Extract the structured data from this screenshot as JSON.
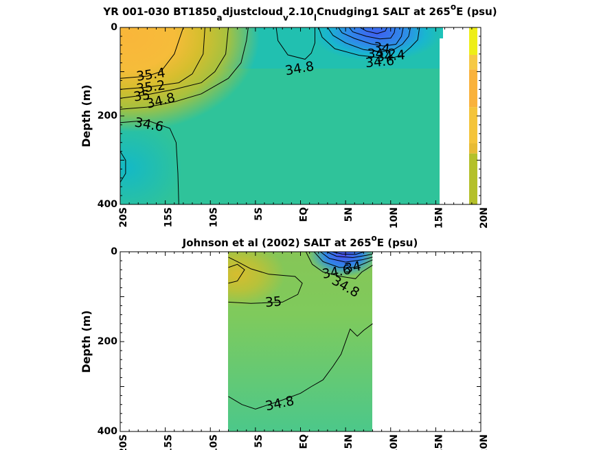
{
  "chart_data": [
    {
      "type": "heatmap",
      "title": {
        "pre": "YR 001-030 BT1850",
        "sub1": "a",
        "mid1": "djustcloud",
        "sub2": "v",
        "mid2": "2.10",
        "sub3": "l",
        "mid3": "Cnudging1 SALT at 265",
        "sup": "o",
        "post": "E (psu)"
      },
      "ylabel": "Depth (m)",
      "xlim": [
        -20,
        20
      ],
      "ylim": [
        0,
        400
      ],
      "y_reversed": true,
      "x_ticks": [
        {
          "v": -20,
          "label": "20S"
        },
        {
          "v": -15,
          "label": "15S"
        },
        {
          "v": -10,
          "label": "10S"
        },
        {
          "v": -5,
          "label": "5S"
        },
        {
          "v": 0,
          "label": "EQ"
        },
        {
          "v": 5,
          "label": "5N"
        },
        {
          "v": 10,
          "label": "10N"
        },
        {
          "v": 15,
          "label": "15N"
        },
        {
          "v": 20,
          "label": "20N"
        }
      ],
      "y_ticks": [
        0,
        200,
        400
      ],
      "data_extent_lat": [
        -20,
        15.5
      ],
      "colormap": "parula",
      "contours": [
        {
          "level": 35.4,
          "points": [
            [
              -20,
              115
            ],
            [
              -17,
              110
            ],
            [
              -15.5,
              100
            ],
            [
              -14,
              60
            ],
            [
              -13,
              0
            ]
          ]
        },
        {
          "level": 35.2,
          "points": [
            [
              -20,
              140
            ],
            [
              -17,
              135
            ],
            [
              -13.5,
              125
            ],
            [
              -12,
              105
            ],
            [
              -10.8,
              60
            ],
            [
              -10.6,
              0
            ]
          ]
        },
        {
          "level": 35,
          "points": [
            [
              -20,
              160
            ],
            [
              -17,
              152
            ],
            [
              -14,
              140
            ],
            [
              -11,
              125
            ],
            [
              -9.5,
              100
            ],
            [
              -8.3,
              60
            ],
            [
              -8,
              0
            ]
          ]
        },
        {
          "level": 34.8,
          "points": [
            [
              -20,
              185
            ],
            [
              -17,
              180
            ],
            [
              -14,
              168
            ],
            [
              -11,
              150
            ],
            [
              -8,
              115
            ],
            [
              -6.6,
              80
            ],
            [
              -6,
              30
            ],
            [
              -5.8,
              0
            ]
          ]
        },
        {
          "level": 34.6,
          "points": [
            [
              -20,
              215
            ],
            [
              -17,
              210
            ],
            [
              -14.5,
              228
            ],
            [
              -13.8,
              260
            ],
            [
              -13.6,
              330
            ],
            [
              -13.5,
              400
            ]
          ]
        },
        {
          "level": 34.6,
          "points": [
            [
              -20,
              280
            ],
            [
              -19.4,
              300
            ],
            [
              -19.4,
              330
            ],
            [
              -20,
              350
            ]
          ]
        },
        {
          "level": 34.8,
          "points": [
            [
              -2.7,
              0
            ],
            [
              -2.5,
              30
            ],
            [
              -1.4,
              62
            ],
            [
              0.5,
              72
            ],
            [
              1.2,
              58
            ],
            [
              1.6,
              35
            ],
            [
              1.6,
              0
            ]
          ]
        },
        {
          "level": 34.6,
          "points": [
            [
              2,
              0
            ],
            [
              2.4,
              22
            ],
            [
              3.8,
              48
            ],
            [
              6.5,
              63
            ],
            [
              8.7,
              68
            ],
            [
              10,
              70
            ],
            [
              11.2,
              63
            ],
            [
              12.2,
              45
            ],
            [
              13,
              28
            ],
            [
              13.2,
              0
            ]
          ]
        },
        {
          "level": 34.4,
          "points": [
            [
              3,
              0
            ],
            [
              3.6,
              18
            ],
            [
              5,
              35
            ],
            [
              7,
              50
            ],
            [
              8.8,
              55
            ],
            [
              10.2,
              52
            ],
            [
              11.3,
              38
            ],
            [
              12,
              20
            ],
            [
              12.2,
              0
            ]
          ]
        },
        {
          "level": 34.2,
          "points": [
            [
              4.2,
              0
            ],
            [
              4.6,
              12
            ],
            [
              6,
              25
            ],
            [
              7.8,
              37
            ],
            [
              9.2,
              42
            ],
            [
              10.6,
              38
            ],
            [
              11.2,
              20
            ],
            [
              11.4,
              0
            ]
          ]
        },
        {
          "level": 34,
          "points": [
            [
              5.4,
              0
            ],
            [
              5.8,
              10
            ],
            [
              7.3,
              20
            ],
            [
              8.8,
              26
            ],
            [
              10,
              24
            ],
            [
              10.4,
              12
            ],
            [
              10.5,
              0
            ]
          ]
        },
        {
          "level": 33.8,
          "points": [
            [
              6.6,
              0
            ],
            [
              7.3,
              8
            ],
            [
              8.5,
              14
            ],
            [
              9.4,
              8
            ],
            [
              9.6,
              0
            ]
          ]
        }
      ],
      "contour_labels": [
        {
          "text": "35.4",
          "lat": -16.6,
          "depth": 107,
          "angle": -8
        },
        {
          "text": "35.2",
          "lat": -16.6,
          "depth": 135,
          "angle": -8
        },
        {
          "text": "35",
          "lat": -17.6,
          "depth": 155,
          "angle": -8
        },
        {
          "text": "34.8",
          "lat": -15.5,
          "depth": 166,
          "angle": -14
        },
        {
          "text": "34.6",
          "lat": -16.8,
          "depth": 220,
          "angle": 10
        },
        {
          "text": "34.8",
          "lat": -0.1,
          "depth": 93,
          "angle": -10
        },
        {
          "text": "34",
          "lat": 9.0,
          "depth": 47,
          "angle": 8
        },
        {
          "text": "34.2",
          "lat": 9.0,
          "depth": 60,
          "angle": 0
        },
        {
          "text": "34.4",
          "lat": 10.0,
          "depth": 65,
          "angle": -5
        },
        {
          "text": "34.6",
          "lat": 8.8,
          "depth": 78,
          "angle": -5
        }
      ],
      "side_strip": [
        {
          "d0": 0,
          "d1": 62,
          "color": "#eeee18"
        },
        {
          "d0": 62,
          "d1": 95,
          "color": "#f6c945"
        },
        {
          "d0": 95,
          "d1": 180,
          "color": "#f9b23c"
        },
        {
          "d0": 180,
          "d1": 262,
          "color": "#f4c43a"
        },
        {
          "d0": 262,
          "d1": 285,
          "color": "#e7bb34"
        },
        {
          "d0": 285,
          "d1": 400,
          "color": "#b4c02a"
        }
      ]
    },
    {
      "type": "heatmap",
      "title": {
        "pre": "Johnson et al (2002) SALT at 265",
        "sup": "o",
        "post": "E (psu)"
      },
      "ylabel": "Depth (m)",
      "xlim": [
        -20,
        20
      ],
      "ylim": [
        0,
        400
      ],
      "y_reversed": true,
      "x_ticks": [
        {
          "v": -20,
          "label": "20S"
        },
        {
          "v": -15,
          "label": "15S"
        },
        {
          "v": -10,
          "label": "10S"
        },
        {
          "v": -5,
          "label": "5S"
        },
        {
          "v": 0,
          "label": "EQ"
        },
        {
          "v": 5,
          "label": "5N"
        },
        {
          "v": 10,
          "label": "10N"
        },
        {
          "v": 15,
          "label": "15N"
        },
        {
          "v": 20,
          "label": "20N"
        }
      ],
      "y_ticks": [
        0,
        200,
        400
      ],
      "data_extent_lat": [
        -8,
        8
      ],
      "colormap": "parula",
      "contours": [
        {
          "level": 35,
          "points": [
            [
              -8,
              112
            ],
            [
              -5.5,
              115
            ],
            [
              -2,
              112
            ],
            [
              -0.3,
              95
            ],
            [
              0.2,
              70
            ],
            [
              -0.6,
              55
            ],
            [
              -3.5,
              50
            ],
            [
              -5.5,
              38
            ],
            [
              -7,
              22
            ],
            [
              -8,
              12
            ]
          ]
        },
        {
          "level": 35,
          "points": [
            [
              -8,
              35
            ],
            [
              -7,
              28
            ],
            [
              -6.2,
              40
            ],
            [
              -7,
              65
            ],
            [
              -8,
              70
            ]
          ]
        },
        {
          "level": 34.8,
          "points": [
            [
              -8,
              322
            ],
            [
              -6.5,
              340
            ],
            [
              -5,
              350
            ],
            [
              -2,
              330
            ],
            [
              0,
              315
            ],
            [
              1.2,
              300
            ],
            [
              2.5,
              285
            ],
            [
              3.6,
              255
            ],
            [
              4.5,
              228
            ],
            [
              5.5,
              172
            ],
            [
              6.3,
              188
            ],
            [
              7,
              175
            ],
            [
              8,
              160
            ]
          ]
        },
        {
          "level": 34.8,
          "points": [
            [
              0.6,
              0
            ],
            [
              1.3,
              28
            ],
            [
              2.5,
              45
            ],
            [
              4.5,
              55
            ],
            [
              6.1,
              60
            ],
            [
              6.8,
              45
            ],
            [
              8,
              30
            ]
          ]
        },
        {
          "level": 34.6,
          "points": [
            [
              1.5,
              0
            ],
            [
              2.5,
              22
            ],
            [
              4.3,
              35
            ],
            [
              6,
              35
            ],
            [
              7.1,
              26
            ],
            [
              8,
              18
            ]
          ]
        },
        {
          "level": 34.4,
          "points": [
            [
              2.2,
              0
            ],
            [
              3.2,
              15
            ],
            [
              5,
              23
            ],
            [
              6.8,
              18
            ],
            [
              8,
              12
            ]
          ]
        },
        {
          "level": 34.2,
          "points": [
            [
              2.9,
              0
            ],
            [
              4,
              10
            ],
            [
              5.8,
              13
            ],
            [
              7.3,
              8
            ],
            [
              8,
              5
            ]
          ]
        },
        {
          "level": 34,
          "points": [
            [
              3.5,
              0
            ],
            [
              4.6,
              5
            ],
            [
              6.1,
              6
            ],
            [
              7.1,
              0
            ]
          ]
        }
      ],
      "contour_labels": [
        {
          "text": "35",
          "lat": -3.0,
          "depth": 112,
          "angle": -5
        },
        {
          "text": "34.8",
          "lat": -2.3,
          "depth": 338,
          "angle": -12
        },
        {
          "text": "34",
          "lat": 5.8,
          "depth": 35,
          "angle": -10
        },
        {
          "text": "34.6",
          "lat": 4.0,
          "depth": 45,
          "angle": -10
        },
        {
          "text": "34.8",
          "lat": 5.0,
          "depth": 78,
          "angle": 30
        }
      ]
    }
  ]
}
